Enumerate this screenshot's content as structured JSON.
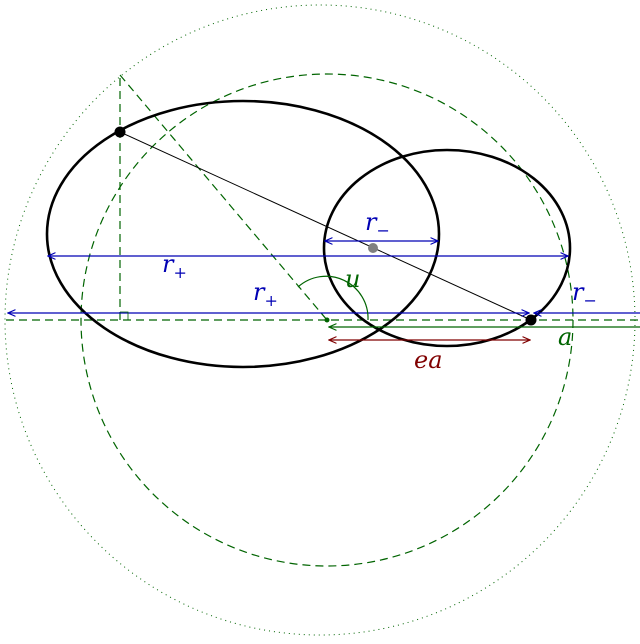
{
  "labels": {
    "r_minus_inner": "r",
    "r_minus_inner_sub": "−",
    "r_plus_long": "r",
    "r_plus_long_sub": "+",
    "r_plus_short": "r",
    "r_plus_short_sub": "+",
    "r_minus_right": "r",
    "r_minus_right_sub": "−",
    "angle_u": "u",
    "semi_major_a": "a",
    "ea": "ea"
  },
  "colors": {
    "blue": "#0000b4",
    "green": "#006400",
    "maroon": "#800000",
    "gray": "#808080",
    "black": "#000000"
  }
}
